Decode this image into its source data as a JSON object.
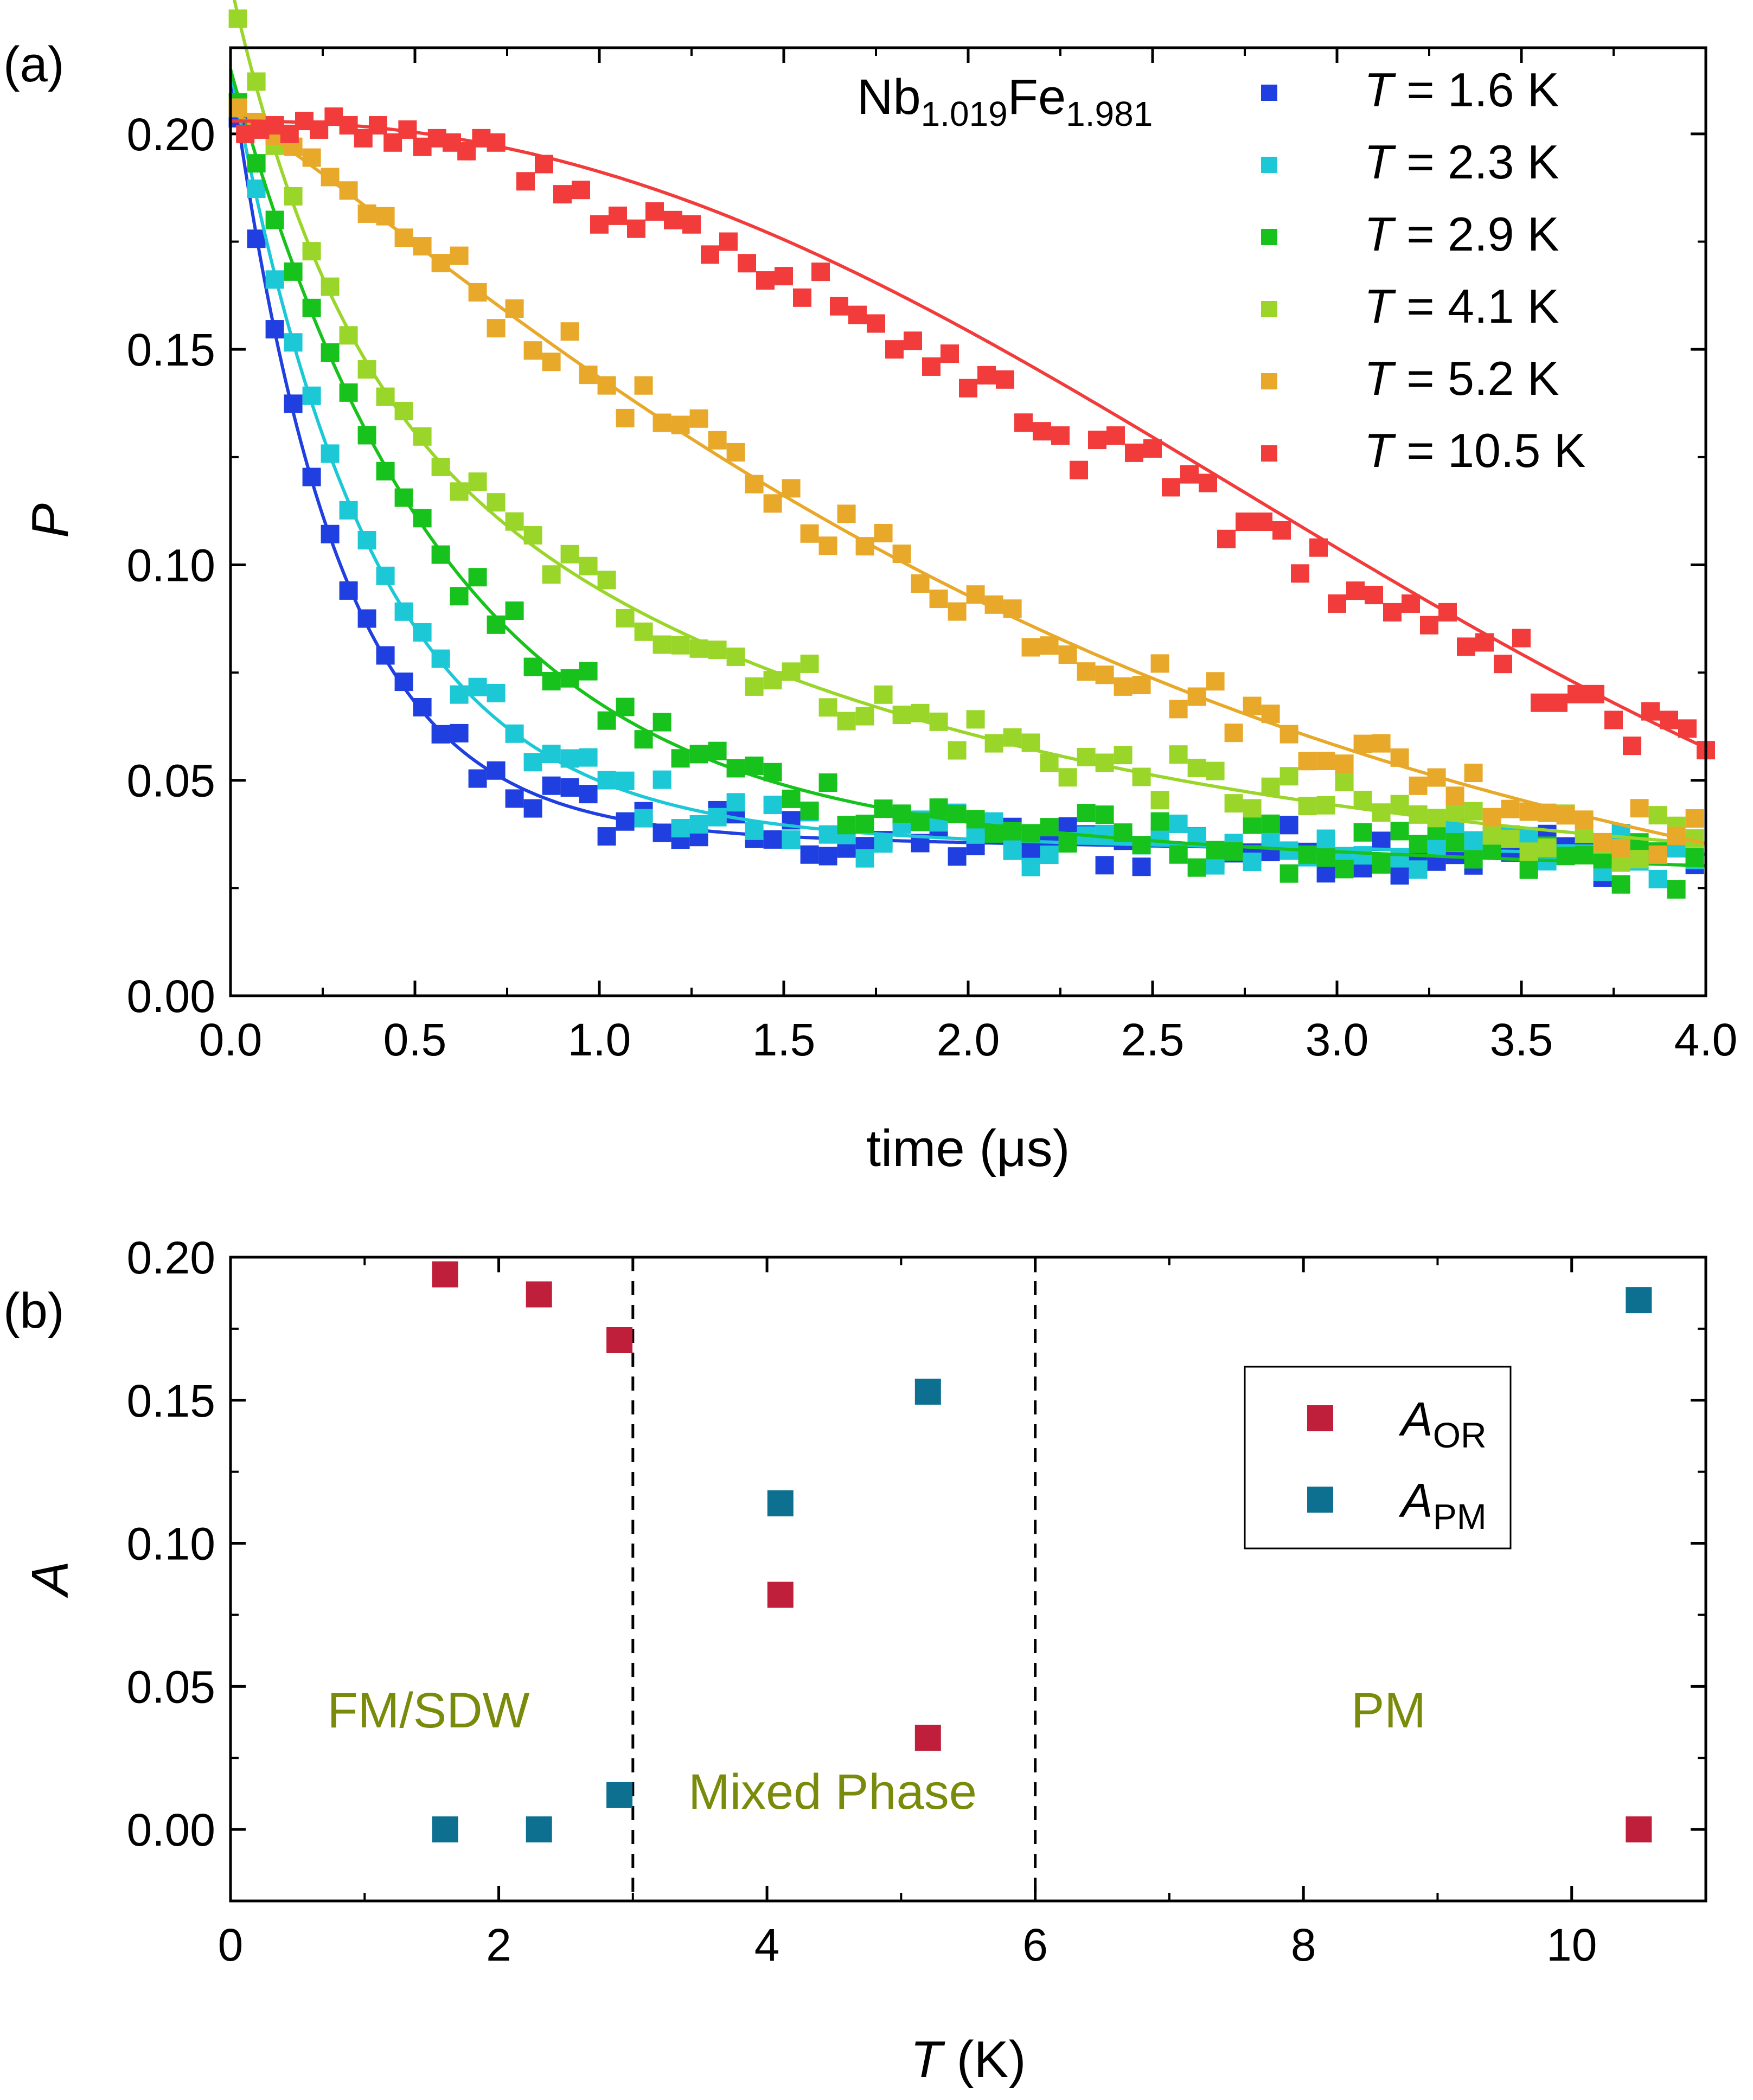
{
  "chart_data": [
    {
      "panel": "(a)",
      "type": "scatter",
      "title": "",
      "annotation": {
        "base": "Nb",
        "sub1": "1.019",
        "mid": "Fe",
        "sub2": "1.981"
      },
      "xlabel": "time (μs)",
      "ylabel": "P",
      "xlim": [
        0,
        4.0
      ],
      "ylim": [
        0,
        0.22
      ],
      "xticks": [
        "0.0",
        "0.5",
        "1.0",
        "1.5",
        "2.0",
        "2.5",
        "3.0",
        "3.5",
        "4.0"
      ],
      "xtick_values": [
        0,
        0.5,
        1.0,
        1.5,
        2.0,
        2.5,
        3.0,
        3.5,
        4.0
      ],
      "yticks": [
        "0.00",
        "0.05",
        "0.10",
        "0.15",
        "0.20"
      ],
      "ytick_values": [
        0,
        0.05,
        0.1,
        0.15,
        0.2
      ],
      "legend_position": "top-right",
      "series": [
        {
          "name": "T = 1.6 K",
          "sym": "T",
          "val": " = 1.6 K",
          "color": "#1f3fe0",
          "A0": 0.198,
          "lambda": 3.5,
          "base": 0.038,
          "slope": -0.0013,
          "tail": 0.0,
          "fit_p0": 0.215
        },
        {
          "name": "T = 2.3 K",
          "sym": "T",
          "val": " = 2.3 K",
          "color": "#1cc8d6",
          "A0": 0.198,
          "lambda": 2.6,
          "base": 0.038,
          "slope": -0.0013,
          "tail": 0.0,
          "fit_p0": 0.215
        },
        {
          "name": "T = 2.9 K",
          "sym": "T",
          "val": " = 2.9 K",
          "color": "#18c21c",
          "A0": 0.198,
          "lambda": 1.75,
          "base": 0.04,
          "slope": -0.0025,
          "tail": 0.0,
          "fit_p0": 0.215
        },
        {
          "name": "T = 4.1 K",
          "sym": "T",
          "val": " = 4.1 K",
          "color": "#9ad62a",
          "A0": 0.2,
          "lambda": 0.33,
          "base": 0.03,
          "slope": 0.0,
          "tail": 0.0,
          "fit_p0": 0.215
        },
        {
          "name": "T = 5.2 K",
          "sym": "T",
          "val": " = 5.2 K",
          "color": "#e8a82a",
          "A0": 0.2,
          "lambda": 0.46,
          "base": 0.0,
          "slope": 0.0,
          "tail": 0.0,
          "fit_p0": 0.205
        },
        {
          "name": "T = 10.5 K",
          "sym": "T",
          "val": " = 10.5 K",
          "color": "#f23c3c",
          "A0": 0.202,
          "lambda": 0.0,
          "base": 0.0,
          "slope": 0.0,
          "tail": 0.0,
          "fit_p0": 0.202
        }
      ],
      "red_points": [
        [
          0.04,
          0.2
        ],
        [
          0.08,
          0.201
        ],
        [
          0.12,
          0.202
        ],
        [
          0.16,
          0.2
        ],
        [
          0.2,
          0.203
        ],
        [
          0.24,
          0.201
        ],
        [
          0.28,
          0.204
        ],
        [
          0.32,
          0.202
        ],
        [
          0.36,
          0.199
        ],
        [
          0.4,
          0.202
        ],
        [
          0.44,
          0.198
        ],
        [
          0.48,
          0.201
        ],
        [
          0.52,
          0.197
        ],
        [
          0.56,
          0.199
        ],
        [
          0.6,
          0.198
        ],
        [
          0.64,
          0.196
        ],
        [
          0.68,
          0.199
        ],
        [
          0.72,
          0.198
        ],
        [
          0.8,
          0.189
        ],
        [
          0.85,
          0.193
        ],
        [
          0.9,
          0.186
        ],
        [
          0.95,
          0.187
        ],
        [
          1.0,
          0.179
        ],
        [
          1.05,
          0.181
        ],
        [
          1.1,
          0.178
        ],
        [
          1.15,
          0.182
        ],
        [
          1.2,
          0.18
        ],
        [
          1.25,
          0.179
        ],
        [
          1.3,
          0.172
        ],
        [
          1.35,
          0.175
        ],
        [
          1.4,
          0.17
        ],
        [
          1.45,
          0.166
        ],
        [
          1.5,
          0.167
        ],
        [
          1.55,
          0.162
        ],
        [
          1.6,
          0.168
        ],
        [
          1.65,
          0.16
        ],
        [
          1.7,
          0.158
        ],
        [
          1.75,
          0.156
        ],
        [
          1.8,
          0.15
        ],
        [
          1.85,
          0.152
        ],
        [
          1.9,
          0.146
        ],
        [
          1.95,
          0.149
        ],
        [
          2.0,
          0.141
        ],
        [
          2.05,
          0.144
        ],
        [
          2.1,
          0.143
        ],
        [
          2.15,
          0.133
        ],
        [
          2.2,
          0.131
        ],
        [
          2.25,
          0.13
        ],
        [
          2.3,
          0.122
        ],
        [
          2.35,
          0.129
        ],
        [
          2.4,
          0.13
        ],
        [
          2.45,
          0.126
        ],
        [
          2.5,
          0.127
        ],
        [
          2.55,
          0.118
        ],
        [
          2.6,
          0.121
        ],
        [
          2.65,
          0.119
        ],
        [
          2.7,
          0.106
        ],
        [
          2.75,
          0.11
        ],
        [
          2.8,
          0.11
        ],
        [
          2.85,
          0.108
        ],
        [
          2.9,
          0.098
        ],
        [
          2.95,
          0.104
        ],
        [
          3.0,
          0.091
        ],
        [
          3.05,
          0.094
        ],
        [
          3.1,
          0.093
        ],
        [
          3.15,
          0.089
        ],
        [
          3.2,
          0.091
        ],
        [
          3.25,
          0.086
        ],
        [
          3.3,
          0.089
        ],
        [
          3.35,
          0.081
        ],
        [
          3.4,
          0.082
        ],
        [
          3.45,
          0.077
        ],
        [
          3.5,
          0.083
        ],
        [
          3.55,
          0.068
        ],
        [
          3.6,
          0.068
        ],
        [
          3.65,
          0.07
        ],
        [
          3.7,
          0.07
        ],
        [
          3.75,
          0.064
        ],
        [
          3.8,
          0.058
        ],
        [
          3.85,
          0.066
        ],
        [
          3.9,
          0.064
        ],
        [
          3.95,
          0.062
        ],
        [
          4.0,
          0.057
        ]
      ]
    },
    {
      "panel": "(b)",
      "type": "scatter",
      "xlabel_sym": "T",
      "xlabel_unit": " (K)",
      "ylabel": "A",
      "xlim": [
        0,
        11
      ],
      "ylim": [
        -0.025,
        0.2
      ],
      "xticks": [
        "0",
        "2",
        "4",
        "6",
        "8",
        "10"
      ],
      "xtick_values": [
        0,
        2,
        4,
        6,
        8,
        10
      ],
      "yticks": [
        "0.00",
        "0.05",
        "0.10",
        "0.15",
        "0.20"
      ],
      "ytick_values": [
        0,
        0.05,
        0.1,
        0.15,
        0.2
      ],
      "legend_position": "top-right",
      "phase_boundaries": [
        3,
        6
      ],
      "phase_labels": {
        "left": "FM/SDW",
        "middle": "Mixed Phase",
        "right": "PM"
      },
      "series": [
        {
          "name": "A_OR",
          "sym": "A",
          "sub": "OR",
          "color": "#c01f3c",
          "x": [
            1.6,
            2.3,
            2.9,
            4.1,
            5.2,
            10.5
          ],
          "y": [
            0.194,
            0.187,
            0.171,
            0.082,
            0.032,
            0.0
          ]
        },
        {
          "name": "A_PM",
          "sym": "A",
          "sub": "PM",
          "color": "#0e7090",
          "x": [
            1.6,
            2.3,
            2.9,
            4.1,
            5.2,
            10.5
          ],
          "y": [
            0.0,
            0.0,
            0.012,
            0.114,
            0.153,
            0.185
          ]
        }
      ]
    }
  ]
}
